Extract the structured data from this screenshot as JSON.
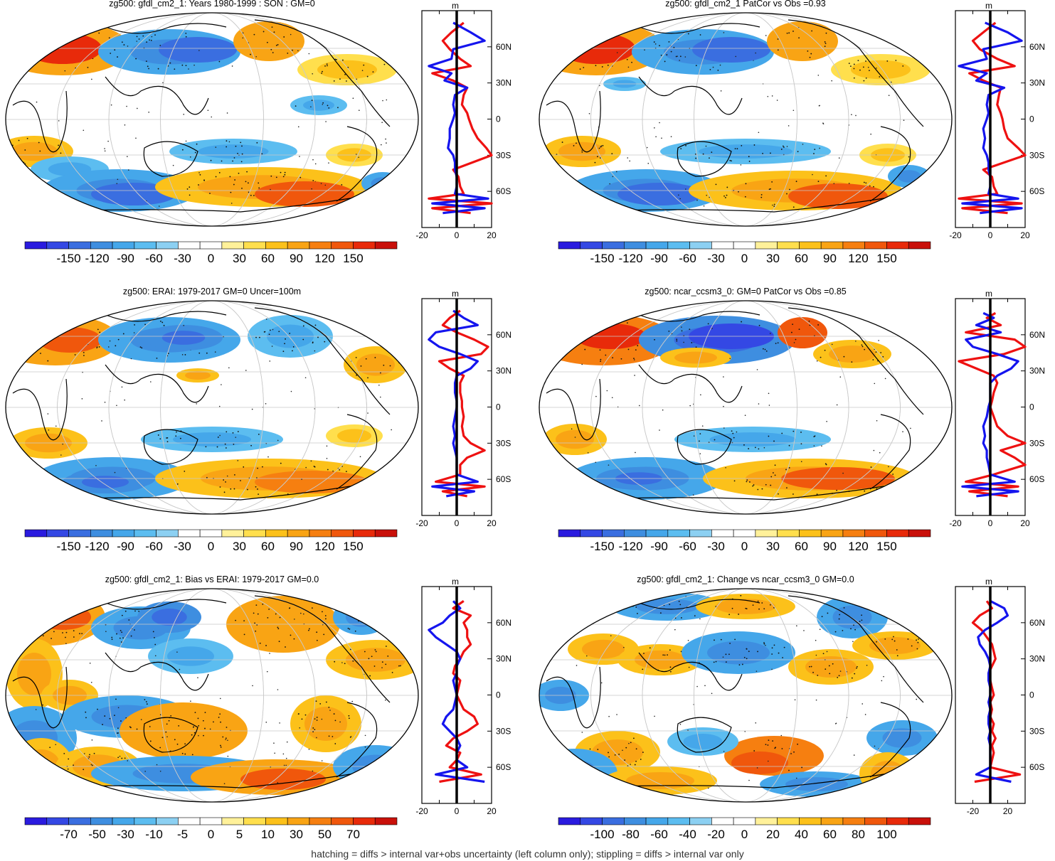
{
  "footnote": "hatching = diffs > internal var+obs uncertainty (left column only); stippling = diffs > internal var only",
  "palette": [
    "#2a1bdf",
    "#3448e4",
    "#3a6ee0",
    "#3e8ee0",
    "#45a7ea",
    "#5cbdf0",
    "#8cd0f2",
    "#ffffff",
    "#ffffff",
    "#fff19a",
    "#ffdf4d",
    "#fcc11a",
    "#f9a414",
    "#f67f10",
    "#f0570c",
    "#e82a0a",
    "#c9100a"
  ],
  "lat_labels": [
    "60N",
    "30N",
    "0",
    "30S",
    "60S"
  ],
  "panels": [
    {
      "id": "p1",
      "title": "zg500: gfdl_cm2_1: Years 1980-1999 : SON : GM=0",
      "colorbar_labels": [
        "-150",
        "-120",
        "-90",
        "-60",
        "-30",
        "0",
        "30",
        "60",
        "90",
        "120",
        "150"
      ],
      "profile": {
        "type": "line",
        "units": "m",
        "xlim": [
          -20,
          20
        ],
        "x_ticks": [
          "-20",
          "0",
          "20"
        ],
        "series": [
          {
            "name": "model",
            "color": "#ee1111",
            "lat": [
              80,
              72,
              65,
              58,
              50,
              44,
              38,
              32,
              26,
              20,
              12,
              5,
              0,
              -8,
              -16,
              -24,
              -30,
              -36,
              -42,
              -48,
              -56,
              -62,
              -66,
              -70,
              -74,
              -78
            ],
            "values": [
              4,
              -3,
              -8,
              -4,
              2,
              8,
              -14,
              -2,
              6,
              4,
              3,
              6,
              7,
              9,
              12,
              17,
              20,
              9,
              -2,
              1,
              2,
              4,
              -16,
              20,
              -14,
              8
            ]
          },
          {
            "name": "obs",
            "color": "#1515ee",
            "lat": [
              80,
              72,
              65,
              58,
              50,
              44,
              38,
              32,
              26,
              20,
              12,
              5,
              0,
              -8,
              -16,
              -24,
              -30,
              -36,
              -42,
              -48,
              -56,
              -62,
              -66,
              -70,
              -74,
              -78
            ],
            "values": [
              -2,
              8,
              16,
              -2,
              -3,
              -16,
              -3,
              -7,
              6,
              -1,
              -2,
              -1,
              -2,
              -4,
              -4,
              -5,
              -2,
              -1,
              -1,
              0,
              0,
              -1,
              18,
              -14,
              16,
              -8
            ]
          }
        ]
      }
    },
    {
      "id": "p2",
      "title": "zg500: gfdl_cm2_1 PatCor vs Obs =0.93",
      "colorbar_labels": [
        "-150",
        "-120",
        "-90",
        "-60",
        "-30",
        "0",
        "30",
        "60",
        "90",
        "120",
        "150"
      ],
      "profile": {
        "type": "line",
        "units": "m",
        "xlim": [
          -20,
          20
        ],
        "x_ticks": [
          "-20",
          "0",
          "20"
        ],
        "series": [
          {
            "name": "model",
            "color": "#ee1111",
            "lat": [
              80,
              72,
              65,
              58,
              50,
              44,
              38,
              32,
              26,
              20,
              12,
              5,
              0,
              -8,
              -16,
              -24,
              -30,
              -36,
              -42,
              -48,
              -56,
              -62,
              -66,
              -70,
              -74,
              -78
            ],
            "values": [
              3,
              -4,
              -10,
              -6,
              4,
              14,
              -12,
              -4,
              6,
              5,
              4,
              6,
              7,
              8,
              10,
              16,
              20,
              8,
              -4,
              1,
              2,
              4,
              -18,
              18,
              -16,
              10
            ]
          },
          {
            "name": "obs",
            "color": "#1515ee",
            "lat": [
              80,
              72,
              65,
              58,
              50,
              44,
              38,
              32,
              26,
              20,
              12,
              5,
              0,
              -8,
              -16,
              -24,
              -30,
              -36,
              -42,
              -48,
              -56,
              -62,
              -66,
              -70,
              -74,
              -78
            ],
            "values": [
              -3,
              10,
              18,
              -4,
              -2,
              -18,
              -2,
              -8,
              8,
              -1,
              -2,
              -1,
              -2,
              -4,
              -3,
              -4,
              -2,
              -1,
              -1,
              0,
              0,
              -1,
              16,
              -16,
              18,
              -6
            ]
          }
        ]
      }
    },
    {
      "id": "p3",
      "title": "zg500: ERAI: 1979-2017 GM=0 Uncer=100m",
      "colorbar_labels": [
        "-150",
        "-120",
        "-90",
        "-60",
        "-30",
        "0",
        "30",
        "60",
        "90",
        "120",
        "150"
      ],
      "profile": {
        "type": "line",
        "units": "m",
        "xlim": [
          -20,
          20
        ],
        "x_ticks": [
          "-20",
          "0",
          "20"
        ],
        "series": [
          {
            "name": "model",
            "color": "#ee1111",
            "lat": [
              80,
              74,
              68,
              62,
              56,
              50,
              44,
              38,
              32,
              26,
              20,
              12,
              5,
              0,
              -8,
              -16,
              -24,
              -30,
              -36,
              -42,
              -48,
              -56,
              -62,
              -66,
              -70,
              -74
            ],
            "values": [
              2,
              -4,
              -8,
              0,
              10,
              18,
              14,
              -10,
              -4,
              4,
              2,
              2,
              3,
              3,
              4,
              3,
              4,
              8,
              16,
              6,
              2,
              2,
              -12,
              16,
              -8,
              6
            ]
          },
          {
            "name": "obs",
            "color": "#1515ee",
            "lat": [
              80,
              74,
              68,
              62,
              56,
              50,
              44,
              38,
              32,
              26,
              20,
              12,
              5,
              0,
              -8,
              -16,
              -24,
              -30,
              -36,
              -42,
              -48,
              -56,
              -62,
              -66,
              -70,
              -74
            ],
            "values": [
              -2,
              4,
              12,
              -12,
              -16,
              -10,
              2,
              12,
              8,
              0,
              -1,
              -1,
              0,
              0,
              -1,
              -2,
              -1,
              -2,
              -1,
              0,
              0,
              0,
              12,
              -14,
              10,
              -6
            ]
          }
        ]
      }
    },
    {
      "id": "p4",
      "title": "zg500: ncar_ccsm3_0: GM=0 PatCor vs Obs =0.85",
      "colorbar_labels": [
        "-150",
        "-120",
        "-90",
        "-60",
        "-30",
        "0",
        "30",
        "60",
        "90",
        "120",
        "150"
      ],
      "profile": {
        "type": "line",
        "units": "m",
        "xlim": [
          -20,
          20
        ],
        "x_ticks": [
          "-20",
          "0",
          "20"
        ],
        "series": [
          {
            "name": "model",
            "color": "#ee1111",
            "lat": [
              78,
              74,
              68,
              62,
              56,
              50,
              44,
              38,
              32,
              26,
              20,
              12,
              5,
              0,
              -8,
              -16,
              -24,
              -30,
              -36,
              -42,
              -48,
              -56,
              -62,
              -66,
              -70,
              -74
            ],
            "values": [
              3,
              -2,
              6,
              -14,
              14,
              22,
              8,
              -18,
              -8,
              2,
              4,
              2,
              1,
              0,
              2,
              4,
              10,
              20,
              6,
              14,
              20,
              2,
              -14,
              16,
              -12,
              10
            ]
          },
          {
            "name": "obs",
            "color": "#1515ee",
            "lat": [
              78,
              74,
              68,
              62,
              56,
              50,
              44,
              38,
              32,
              26,
              20,
              12,
              5,
              0,
              -8,
              -16,
              -24,
              -30,
              -36,
              -42,
              -48,
              -56,
              -62,
              -66,
              -70,
              -74
            ],
            "values": [
              -4,
              2,
              -8,
              6,
              -14,
              -10,
              4,
              16,
              12,
              4,
              0,
              0,
              0,
              -1,
              -2,
              -4,
              -3,
              -4,
              -2,
              -2,
              -1,
              0,
              14,
              -16,
              16,
              -8
            ]
          }
        ]
      }
    },
    {
      "id": "p5",
      "title": "zg500: gfdl_cm2_1: Bias vs ERAI: 1979-2017  GM=0.0",
      "colorbar_labels": [
        "-70",
        "-50",
        "-30",
        "-10",
        "-5",
        "0",
        "5",
        "10",
        "30",
        "50",
        "70"
      ],
      "profile": {
        "type": "line",
        "units": "m",
        "xlim": [
          -20,
          20
        ],
        "x_ticks": [
          "-20",
          "0",
          "20"
        ],
        "series": [
          {
            "name": "model",
            "color": "#ee1111",
            "lat": [
              78,
              72,
              66,
              60,
              54,
              48,
              42,
              36,
              30,
              24,
              18,
              12,
              6,
              0,
              -6,
              -12,
              -18,
              -24,
              -30,
              -36,
              -42,
              -48,
              -54,
              -60,
              -66,
              -72
            ],
            "values": [
              4,
              -2,
              8,
              4,
              6,
              6,
              8,
              4,
              2,
              -1,
              -2,
              2,
              1,
              0,
              2,
              4,
              10,
              12,
              6,
              -2,
              -6,
              2,
              0,
              -4,
              14,
              -10
            ]
          },
          {
            "name": "obs",
            "color": "#1515ee",
            "lat": [
              78,
              72,
              66,
              60,
              54,
              48,
              42,
              36,
              30,
              24,
              18,
              12,
              6,
              0,
              -6,
              -12,
              -18,
              -24,
              -30,
              -36,
              -42,
              -48,
              -54,
              -60,
              -66,
              -72
            ],
            "values": [
              -2,
              2,
              -4,
              -8,
              -16,
              -12,
              -6,
              0,
              2,
              0,
              0,
              -2,
              -1,
              0,
              -1,
              -2,
              -6,
              -8,
              -4,
              0,
              2,
              0,
              0,
              6,
              -12,
              16
            ]
          }
        ]
      }
    },
    {
      "id": "p6",
      "title": "zg500: gfdl_cm2_1: Change vs ncar_ccsm3_0 GM=0.0",
      "colorbar_labels": [
        "-100",
        "-80",
        "-60",
        "-40",
        "-20",
        "0",
        "20",
        "40",
        "60",
        "80",
        "100"
      ],
      "profile": {
        "type": "line",
        "units": "m",
        "xlim": [
          -40,
          40
        ],
        "x_ticks": [
          "-20",
          "20"
        ],
        "series": [
          {
            "name": "model",
            "color": "#ee1111",
            "lat": [
              78,
              72,
              66,
              60,
              54,
              48,
              42,
              36,
              30,
              24,
              18,
              12,
              6,
              0,
              -6,
              -12,
              -18,
              -24,
              -30,
              -36,
              -42,
              -48,
              -54,
              -60,
              -66,
              -72
            ],
            "values": [
              -4,
              2,
              -12,
              -20,
              -10,
              -4,
              2,
              4,
              6,
              2,
              -2,
              0,
              2,
              4,
              0,
              2,
              0,
              4,
              2,
              6,
              2,
              4,
              2,
              0,
              34,
              -18
            ]
          },
          {
            "name": "obs",
            "color": "#1515ee",
            "lat": [
              78,
              72,
              66,
              60,
              54,
              48,
              42,
              36,
              30,
              24,
              18,
              12,
              6,
              0,
              -6,
              -12,
              -18,
              -24,
              -30,
              -36,
              -42,
              -48,
              -54,
              -60,
              -66,
              -72
            ],
            "values": [
              0,
              16,
              20,
              8,
              -6,
              -14,
              -12,
              -6,
              -2,
              0,
              -2,
              -2,
              0,
              0,
              -2,
              0,
              -2,
              -2,
              0,
              -2,
              0,
              0,
              0,
              0,
              -16,
              24
            ]
          }
        ]
      }
    }
  ]
}
